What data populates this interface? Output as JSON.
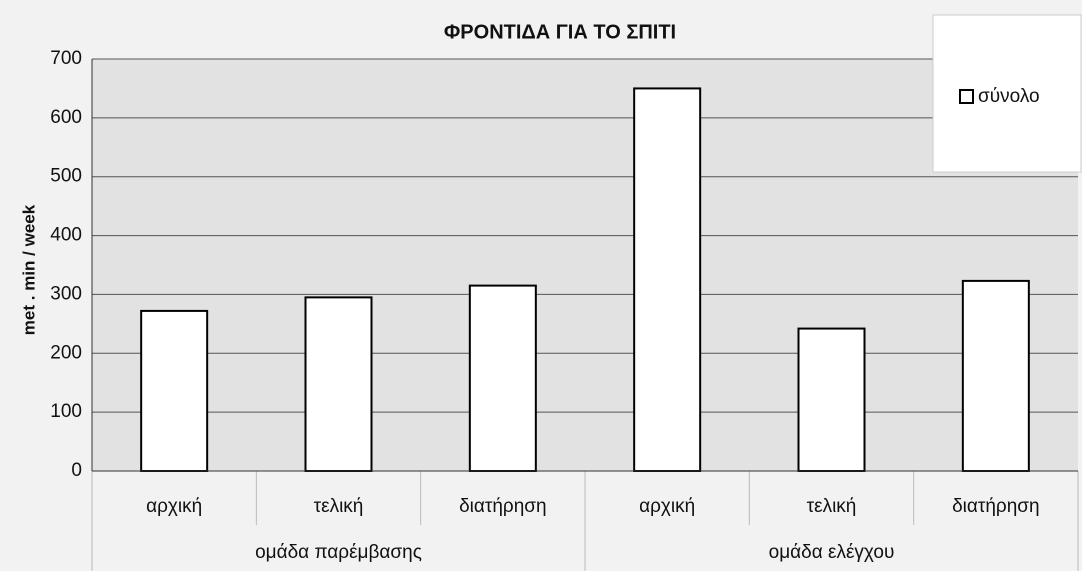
{
  "chart_data": {
    "type": "bar",
    "title": "ΦΡΟΝΤΙΔΑ ΓΙΑ ΤΟ ΣΠΙΤΙ",
    "y_label": "met . min / week",
    "groups": [
      {
        "name": "ομάδα παρέμβασης",
        "categories": [
          "αρχική",
          "τελική",
          "διατήρηση"
        ]
      },
      {
        "name": "ομάδα ελέγχου",
        "categories": [
          "αρχική",
          "τελική",
          "διατήρηση"
        ]
      }
    ],
    "series": [
      {
        "name": "σύνολο",
        "color": "#ffffff",
        "values": [
          272,
          295,
          315,
          650,
          242,
          323
        ]
      }
    ],
    "ylim": [
      0,
      700
    ],
    "yticks": [
      0,
      100,
      200,
      300,
      400,
      500,
      600,
      700
    ],
    "grid": true,
    "legend": "top-right"
  }
}
